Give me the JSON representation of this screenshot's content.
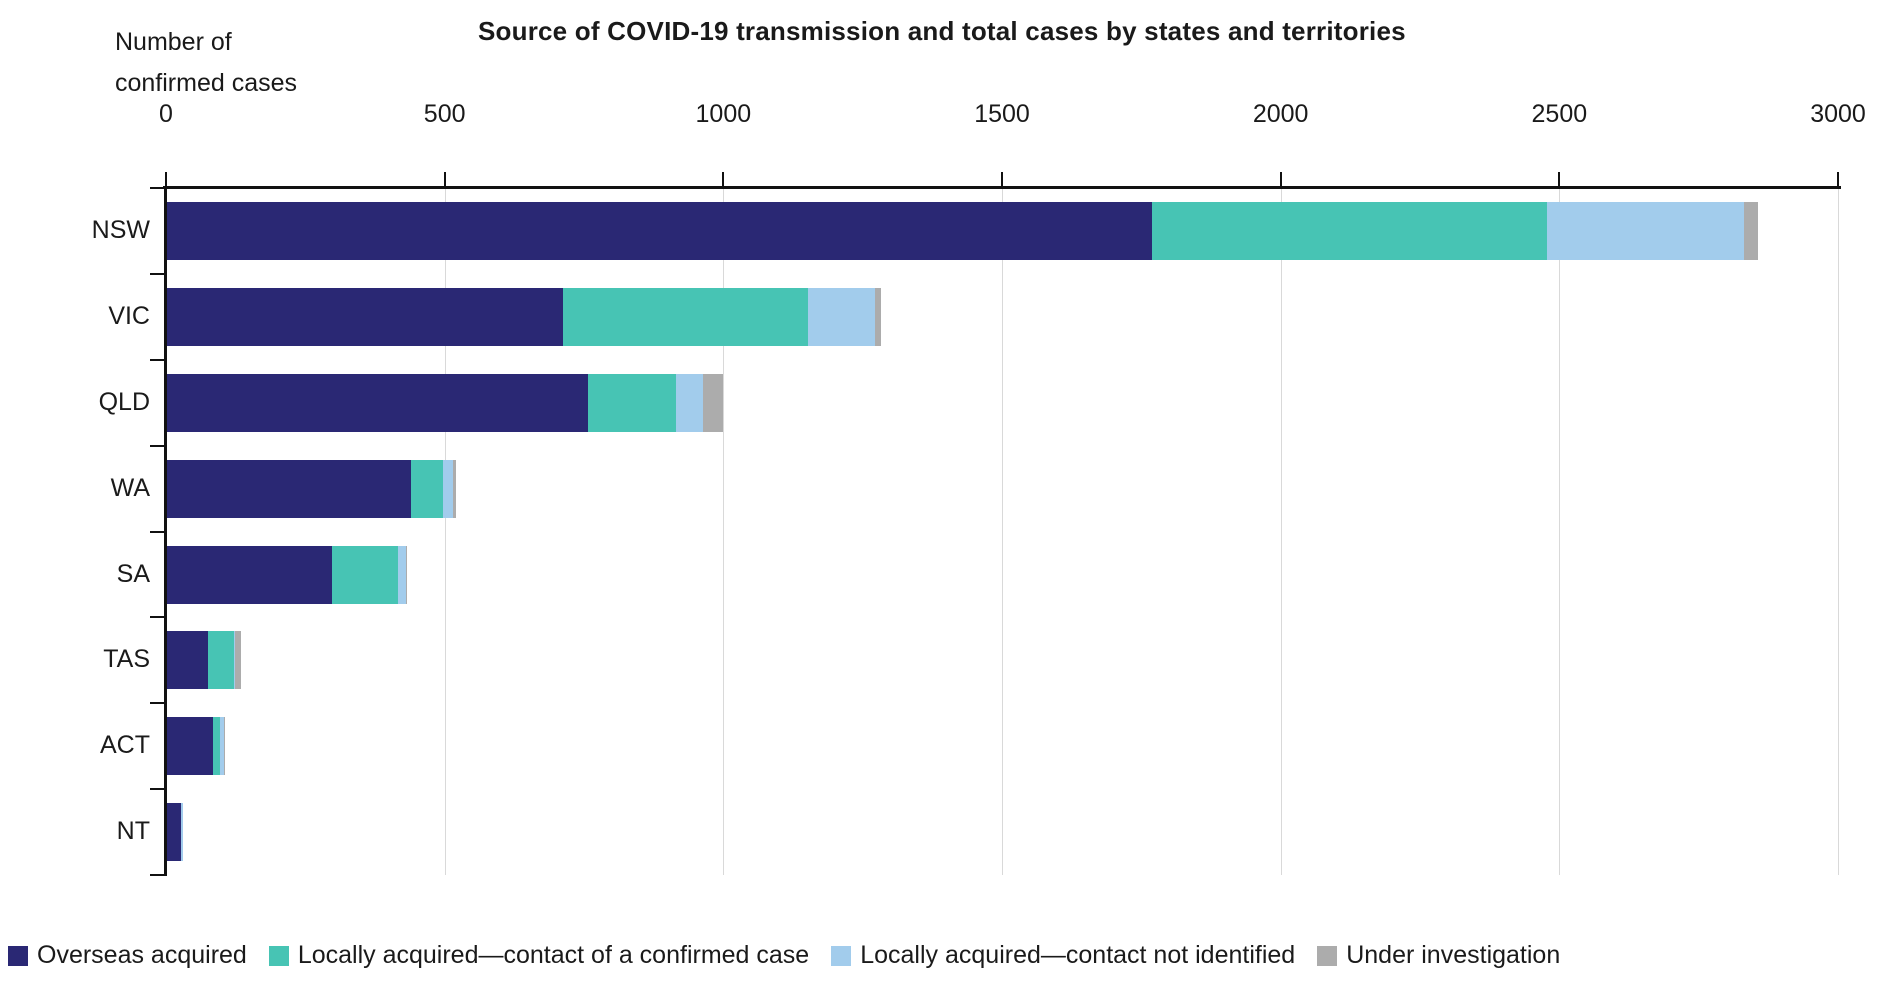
{
  "header": {
    "title": "Source of COVID-19 transmission and total cases by states and territories",
    "unit_label_line1": "Number of",
    "unit_label_line2": "confirmed cases"
  },
  "chart_data": {
    "type": "bar",
    "orientation": "horizontal",
    "stacked": true,
    "title": "Source of COVID-19 transmission and total cases by states and territories",
    "xlabel": "Number of confirmed cases",
    "ylabel": "",
    "xlim": [
      0,
      3000
    ],
    "x_ticks": [
      0,
      500,
      1000,
      1500,
      2000,
      2500,
      3000
    ],
    "grid": true,
    "legend_position": "bottom",
    "categories": [
      "NSW",
      "VIC",
      "QLD",
      "WA",
      "SA",
      "TAS",
      "ACT",
      "NT"
    ],
    "series": [
      {
        "name": "Overseas acquired",
        "color": "#2a2874",
        "values": [
          1767,
          711,
          755,
          438,
          296,
          74,
          83,
          26
        ]
      },
      {
        "name": "Locally acquired—contact of a confirmed case",
        "color": "#47c4b4",
        "values": [
          709,
          439,
          158,
          57,
          119,
          46,
          12,
          0
        ]
      },
      {
        "name": "Locally acquired—contact not identified",
        "color": "#a2ccec",
        "values": [
          354,
          120,
          48,
          18,
          14,
          2,
          7,
          2
        ]
      },
      {
        "name": "Under investigation",
        "color": "#acacac",
        "values": [
          25,
          11,
          36,
          5,
          2,
          11,
          1,
          0
        ]
      }
    ],
    "totals": [
      2855,
      1281,
      997,
      518,
      431,
      133,
      103,
      28
    ]
  },
  "colors": {
    "axis": "#111111",
    "gridline": "#d9d9d9",
    "background": "#ffffff"
  }
}
